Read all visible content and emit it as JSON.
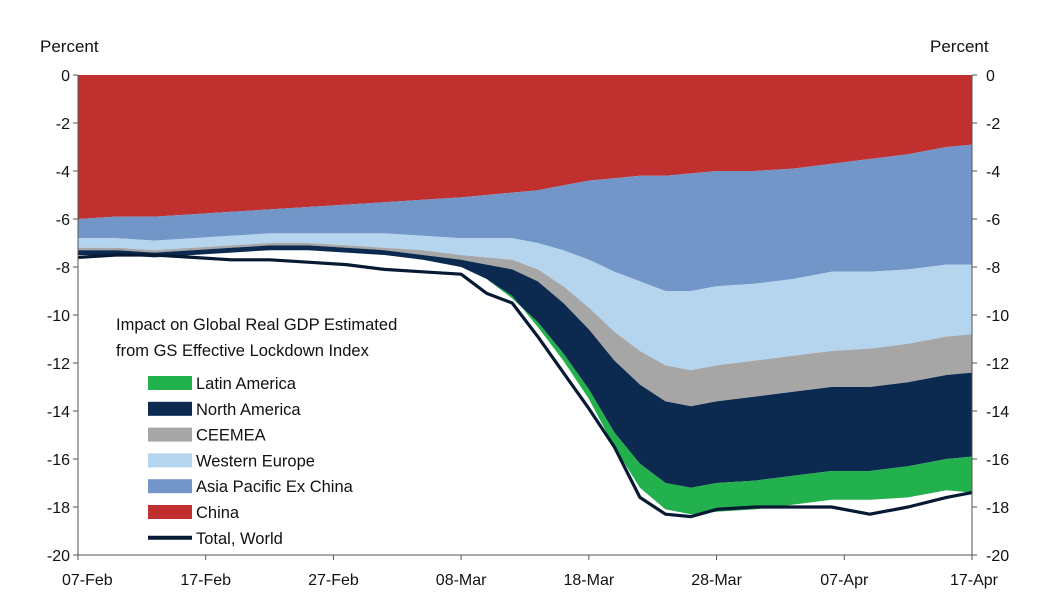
{
  "chart_data": {
    "type": "area",
    "stacked": true,
    "y_unit_left": "Percent",
    "y_unit_right": "Percent",
    "ylim": [
      -20,
      0
    ],
    "y_ticks": [
      0,
      -2,
      -4,
      -6,
      -8,
      -10,
      -12,
      -14,
      -16,
      -18,
      -20
    ],
    "x_range": [
      "2020-02-07",
      "2020-04-17"
    ],
    "x_ticks": [
      "07-Feb",
      "17-Feb",
      "27-Feb",
      "08-Mar",
      "18-Mar",
      "28-Mar",
      "07-Apr",
      "17-Apr"
    ],
    "legend_title": [
      "Impact on Global Real GDP Estimated",
      "from GS Effective Lockdown Index"
    ],
    "legend_position": "left-middle",
    "x": [
      "2020-02-07",
      "2020-02-10",
      "2020-02-13",
      "2020-02-16",
      "2020-02-19",
      "2020-02-22",
      "2020-02-25",
      "2020-02-28",
      "2020-03-02",
      "2020-03-05",
      "2020-03-08",
      "2020-03-10",
      "2020-03-12",
      "2020-03-14",
      "2020-03-16",
      "2020-03-18",
      "2020-03-20",
      "2020-03-22",
      "2020-03-24",
      "2020-03-26",
      "2020-03-28",
      "2020-03-31",
      "2020-04-03",
      "2020-04-06",
      "2020-04-09",
      "2020-04-12",
      "2020-04-15",
      "2020-04-17"
    ],
    "series": [
      {
        "name": "China",
        "color": "#c0302f",
        "values": [
          -6.0,
          -5.9,
          -5.9,
          -5.8,
          -5.7,
          -5.6,
          -5.5,
          -5.4,
          -5.3,
          -5.2,
          -5.1,
          -5.0,
          -4.9,
          -4.8,
          -4.6,
          -4.4,
          -4.3,
          -4.2,
          -4.2,
          -4.1,
          -4.0,
          -4.0,
          -3.9,
          -3.7,
          -3.5,
          -3.3,
          -3.0,
          -2.9
        ]
      },
      {
        "name": "Asia Pacific Ex China",
        "color": "#7396c8",
        "values": [
          -0.8,
          -0.9,
          -1.0,
          -1.0,
          -1.0,
          -1.0,
          -1.1,
          -1.2,
          -1.3,
          -1.5,
          -1.7,
          -1.8,
          -1.9,
          -2.2,
          -2.7,
          -3.3,
          -3.9,
          -4.4,
          -4.8,
          -4.9,
          -4.8,
          -4.7,
          -4.6,
          -4.5,
          -4.7,
          -4.8,
          -4.9,
          -5.0
        ]
      },
      {
        "name": "Western Europe",
        "color": "#b5d4ee",
        "values": [
          -0.4,
          -0.4,
          -0.4,
          -0.4,
          -0.4,
          -0.4,
          -0.4,
          -0.5,
          -0.6,
          -0.6,
          -0.7,
          -0.8,
          -0.9,
          -1.1,
          -1.5,
          -2.0,
          -2.5,
          -2.9,
          -3.1,
          -3.3,
          -3.3,
          -3.2,
          -3.2,
          -3.3,
          -3.2,
          -3.1,
          -3.0,
          -2.9
        ]
      },
      {
        "name": "CEEMEA",
        "color": "#a6a6a6",
        "values": [
          -0.1,
          -0.1,
          -0.1,
          -0.1,
          -0.1,
          -0.1,
          -0.1,
          -0.1,
          -0.1,
          -0.2,
          -0.2,
          -0.3,
          -0.4,
          -0.5,
          -0.7,
          -0.9,
          -1.2,
          -1.4,
          -1.5,
          -1.5,
          -1.5,
          -1.5,
          -1.5,
          -1.5,
          -1.6,
          -1.6,
          -1.6,
          -1.6
        ]
      },
      {
        "name": "North America",
        "color": "#0c2a50",
        "values": [
          -0.2,
          -0.2,
          -0.2,
          -0.2,
          -0.2,
          -0.2,
          -0.2,
          -0.2,
          -0.2,
          -0.2,
          -0.3,
          -0.6,
          -1.2,
          -1.7,
          -2.1,
          -2.5,
          -3.0,
          -3.3,
          -3.4,
          -3.4,
          -3.4,
          -3.5,
          -3.5,
          -3.5,
          -3.5,
          -3.5,
          -3.5,
          -3.5
        ]
      },
      {
        "name": "Latin America",
        "color": "#22b14c",
        "values": [
          0.0,
          0.0,
          0.0,
          0.0,
          0.0,
          0.0,
          0.0,
          0.0,
          0.0,
          0.0,
          0.0,
          0.0,
          0.1,
          -0.2,
          -0.3,
          -0.4,
          -0.6,
          -1.0,
          -1.1,
          -1.1,
          -1.2,
          -1.2,
          -1.2,
          -1.2,
          -1.2,
          -1.3,
          -1.3,
          -1.5
        ]
      }
    ],
    "total": {
      "name": "Total, World",
      "color": "#071a33",
      "values": [
        -7.6,
        -7.5,
        -7.5,
        -7.6,
        -7.7,
        -7.7,
        -7.8,
        -7.9,
        -8.1,
        -8.2,
        -8.3,
        -9.1,
        -9.5,
        -10.9,
        -12.4,
        -13.9,
        -15.5,
        -17.6,
        -18.3,
        -18.4,
        -18.1,
        -18.0,
        -18.0,
        -18.0,
        -18.3,
        -18.0,
        -17.6,
        -17.4
      ]
    }
  }
}
